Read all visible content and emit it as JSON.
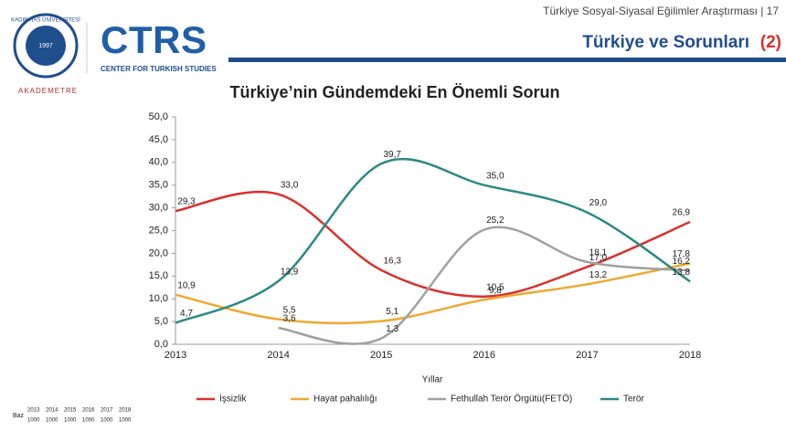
{
  "header": {
    "subtitle": "Türkiye Sosyal-Siyasal Eğilimler Araştırması | 17",
    "title": "Türkiye ve Sorunları",
    "title_number": "(2)"
  },
  "logos": {
    "university": "KADIR HAS ÜNİVERSİTESİ",
    "founded": "1997",
    "ctrs": "CTRS",
    "ctrs_full": "CENTER FOR TURKISH STUDIES",
    "akademetre": "AKADEMETRE"
  },
  "chart_data": {
    "type": "line",
    "title": "Türkiye’nin Gündemdeki En Önemli Sorun",
    "x_label": "Yıllar",
    "categories": [
      "2013",
      "2014",
      "2015",
      "2016",
      "2017",
      "2018"
    ],
    "series": [
      {
        "name": "İşsizlik",
        "color": "#d9302c",
        "values": [
          29.3,
          33.0,
          16.3,
          10.5,
          17.0,
          26.9
        ],
        "value_labels": [
          "29,3",
          "33,0",
          "16,3",
          "10,5",
          "17,0",
          "26,9"
        ]
      },
      {
        "name": "Hayat pahalılığı",
        "color": "#f0a830",
        "values": [
          10.9,
          5.5,
          5.1,
          9.8,
          13.2,
          17.8
        ],
        "value_labels": [
          "10,9",
          "5,5",
          "5,1",
          "9,8",
          "13,2",
          "17,8"
        ]
      },
      {
        "name": "Fethullah Terör Örgütü(FETÖ)",
        "color": "#a0a0a0",
        "values": [
          null,
          3.6,
          1.3,
          25.2,
          18.1,
          16.2
        ],
        "value_labels": [
          null,
          "3,6",
          "1,3",
          "25,2",
          "18,1",
          "16,2"
        ]
      },
      {
        "name": "Terör",
        "color": "#2a8a82",
        "values": [
          4.7,
          13.9,
          39.7,
          35.0,
          29.0,
          13.8
        ],
        "value_labels": [
          "4,7",
          "13,9",
          "39,7",
          "35,0",
          "29,0",
          "13,8"
        ]
      }
    ],
    "ylim": [
      0,
      50
    ],
    "yticks": [
      {
        "value": 0,
        "label": "0,0"
      },
      {
        "value": 5,
        "label": "5,0"
      },
      {
        "value": 10,
        "label": "10,0"
      },
      {
        "value": 15,
        "label": "15,0"
      },
      {
        "value": 20,
        "label": "20,0"
      },
      {
        "value": 25,
        "label": "25,0"
      },
      {
        "value": 30,
        "label": "30,0"
      },
      {
        "value": 35,
        "label": "35,0"
      },
      {
        "value": 40,
        "label": "40,0"
      },
      {
        "value": 45,
        "label": "45,0"
      },
      {
        "value": 50,
        "label": "50,0"
      }
    ],
    "legend": "bottom"
  },
  "baz": {
    "label": "Baz",
    "years": [
      "2013",
      "2014",
      "2015",
      "2016",
      "2017",
      "2018"
    ],
    "values": [
      1000,
      1000,
      1000,
      1000,
      1000,
      1000
    ]
  }
}
